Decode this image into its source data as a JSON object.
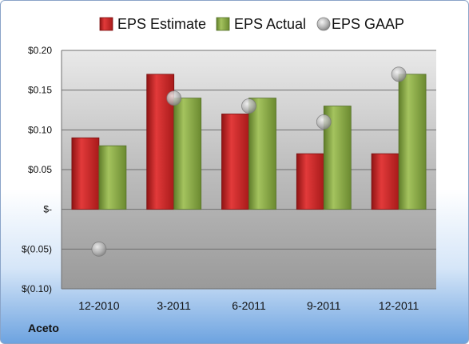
{
  "company": "Aceto",
  "colors": {
    "estimate": "#d42a2a",
    "actual": "#8fb04a",
    "gaap": "#b8b8b8"
  },
  "chart_data": {
    "type": "bar",
    "categories": [
      "12-2010",
      "3-2011",
      "6-2011",
      "9-2011",
      "12-2011"
    ],
    "series": [
      {
        "name": "EPS Estimate",
        "kind": "bar",
        "values": [
          0.09,
          0.17,
          0.12,
          0.07,
          0.07
        ]
      },
      {
        "name": "EPS Actual",
        "kind": "bar",
        "values": [
          0.08,
          0.14,
          0.14,
          0.13,
          0.17
        ]
      },
      {
        "name": "EPS GAAP",
        "kind": "scatter",
        "values": [
          -0.05,
          0.14,
          0.13,
          0.11,
          0.17
        ]
      }
    ],
    "ylim": [
      -0.1,
      0.2
    ],
    "yticks": [
      0.2,
      0.15,
      0.1,
      0.05,
      0,
      -0.05,
      -0.1
    ],
    "ytick_labels": [
      "$0.20",
      "$0.15",
      "$0.10",
      "$0.05",
      "$-",
      "$(0.05)",
      "$(0.10)"
    ],
    "grid": true,
    "legend": "top"
  }
}
